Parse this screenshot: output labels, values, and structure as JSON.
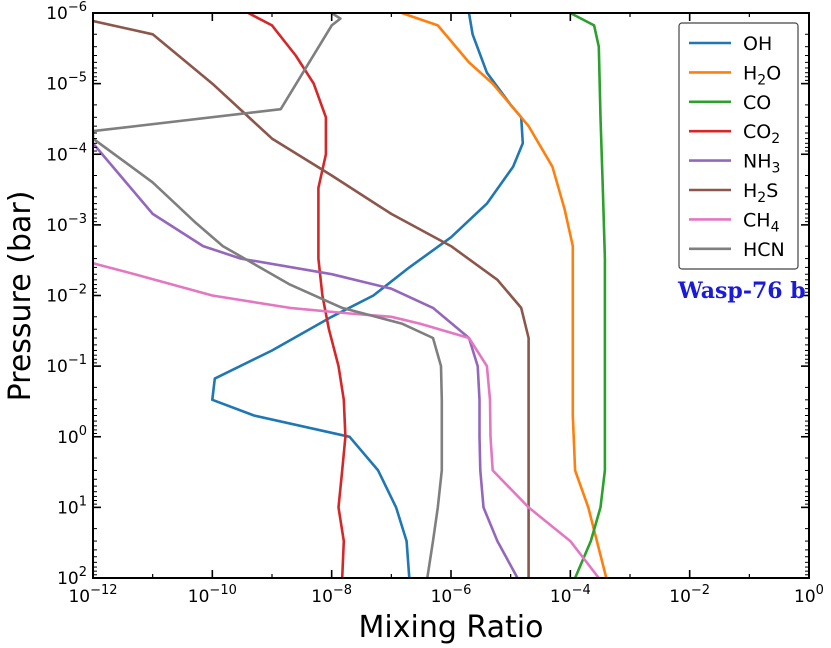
{
  "chart_data": {
    "type": "line",
    "xlabel": "Mixing Ratio",
    "ylabel": "Pressure (bar)",
    "xscale": "log",
    "yscale": "log",
    "y_inverted": true,
    "xlim": [
      1e-12,
      1
    ],
    "ylim": [
      100,
      1e-06
    ],
    "x_tick_labels": [
      {
        "base": "10",
        "exp": "−12"
      },
      {
        "base": "10",
        "exp": "−10"
      },
      {
        "base": "10",
        "exp": "−8"
      },
      {
        "base": "10",
        "exp": "−6"
      },
      {
        "base": "10",
        "exp": "−4"
      },
      {
        "base": "10",
        "exp": "−2"
      },
      {
        "base": "10",
        "exp": "0"
      }
    ],
    "y_tick_labels": [
      {
        "base": "10",
        "exp": "−6"
      },
      {
        "base": "10",
        "exp": "−5"
      },
      {
        "base": "10",
        "exp": "−4"
      },
      {
        "base": "10",
        "exp": "−3"
      },
      {
        "base": "10",
        "exp": "−2"
      },
      {
        "base": "10",
        "exp": "−1"
      },
      {
        "base": "10",
        "exp": "0"
      },
      {
        "base": "10",
        "exp": "1"
      },
      {
        "base": "10",
        "exp": "2"
      }
    ],
    "legend_position": "top-right",
    "annotation": {
      "text": "Wasp-76 b",
      "color": "#1a1adc"
    },
    "series": [
      {
        "name": "OH",
        "label_main": "OH",
        "label_sub": "",
        "color": "#1f77b4",
        "points": [
          [
            2e-07,
            100
          ],
          [
            1.8e-07,
            30
          ],
          [
            1.2e-07,
            10
          ],
          [
            6e-08,
            3
          ],
          [
            2e-08,
            1
          ],
          [
            5e-10,
            0.5
          ],
          [
            1e-10,
            0.3
          ],
          [
            1.1e-10,
            0.15
          ],
          [
            1e-09,
            0.06
          ],
          [
            1e-08,
            0.02
          ],
          [
            5e-08,
            0.01
          ],
          [
            2e-07,
            0.004
          ],
          [
            1e-06,
            0.0015
          ],
          [
            4e-06,
            0.0005
          ],
          [
            1.1e-05,
            0.00015
          ],
          [
            1.6e-05,
            7e-05
          ],
          [
            1.5e-05,
            3e-05
          ],
          [
            1e-05,
            2e-05
          ],
          [
            4e-06,
            7e-06
          ],
          [
            2.3e-06,
            2e-06
          ],
          [
            2e-06,
            1e-06
          ]
        ]
      },
      {
        "name": "H2O",
        "label_main": "H",
        "label_sub": "2",
        "label_tail": "O",
        "color": "#ff7f0e",
        "points": [
          [
            0.0004,
            100
          ],
          [
            0.0002,
            10
          ],
          [
            0.00012,
            3
          ],
          [
            0.00011,
            0.5
          ],
          [
            0.00011,
            0.05
          ],
          [
            0.00011,
            0.01
          ],
          [
            0.00011,
            0.002
          ],
          [
            8e-05,
            0.0006
          ],
          [
            5e-05,
            0.00015
          ],
          [
            2e-05,
            4e-05
          ],
          [
            5e-06,
            1e-05
          ],
          [
            2e-06,
            5e-06
          ],
          [
            6e-07,
            1.5e-06
          ],
          [
            1.5e-07,
            1e-06
          ]
        ]
      },
      {
        "name": "CO",
        "label_main": "CO",
        "label_sub": "",
        "color": "#2ca02c",
        "points": [
          [
            0.00012,
            100
          ],
          [
            0.00022,
            30
          ],
          [
            0.00032,
            10
          ],
          [
            0.00038,
            3
          ],
          [
            0.00038,
            0.3
          ],
          [
            0.00038,
            0.03
          ],
          [
            0.00038,
            0.003
          ],
          [
            0.00035,
            0.0003
          ],
          [
            0.00032,
            3e-05
          ],
          [
            0.0003,
            3e-06
          ],
          [
            0.00025,
            1.5e-06
          ],
          [
            0.0001,
            1e-06
          ]
        ]
      },
      {
        "name": "CO2",
        "label_main": "CO",
        "label_sub": "2",
        "color": "#d62728",
        "points": [
          [
            1.5e-08,
            100
          ],
          [
            1.6e-08,
            30
          ],
          [
            1.3e-08,
            10
          ],
          [
            1.5e-08,
            3
          ],
          [
            1.7e-08,
            1
          ],
          [
            1.6e-08,
            0.3
          ],
          [
            1.3e-08,
            0.1
          ],
          [
            9e-09,
            0.03
          ],
          [
            7e-09,
            0.01
          ],
          [
            6e-09,
            0.003
          ],
          [
            6e-09,
            0.0003
          ],
          [
            8e-09,
            0.0001
          ],
          [
            8e-09,
            3e-05
          ],
          [
            5e-09,
            1e-05
          ],
          [
            2.5e-09,
            4e-06
          ],
          [
            1e-09,
            1.5e-06
          ],
          [
            4e-10,
            1e-06
          ]
        ]
      },
      {
        "name": "NH3",
        "label_main": "NH",
        "label_sub": "3",
        "color": "#9467bd",
        "points": [
          [
            1.3e-05,
            100
          ],
          [
            6e-06,
            30
          ],
          [
            3.5e-06,
            10
          ],
          [
            3.1e-06,
            3
          ],
          [
            3e-06,
            1
          ],
          [
            3e-06,
            0.3
          ],
          [
            2.8e-06,
            0.1
          ],
          [
            2e-06,
            0.04
          ],
          [
            5e-07,
            0.015
          ],
          [
            1e-07,
            0.008
          ],
          [
            1e-08,
            0.005
          ],
          [
            3e-10,
            0.003
          ],
          [
            7e-11,
            0.002
          ],
          [
            1e-11,
            0.0007
          ],
          [
            1e-12,
            7e-05
          ]
        ]
      },
      {
        "name": "H2S",
        "label_main": "H",
        "label_sub": "2",
        "label_tail": "S",
        "color": "#8c564b",
        "points": [
          [
            2e-05,
            100
          ],
          [
            2e-05,
            10
          ],
          [
            2e-05,
            1
          ],
          [
            2e-05,
            0.1
          ],
          [
            2e-05,
            0.04
          ],
          [
            1.5e-05,
            0.015
          ],
          [
            6e-06,
            0.006
          ],
          [
            1e-06,
            0.002
          ],
          [
            1e-07,
            0.0007
          ],
          [
            1e-08,
            0.0002
          ],
          [
            1e-09,
            6e-05
          ],
          [
            1e-10,
            1e-05
          ],
          [
            1e-11,
            2e-06
          ],
          [
            1e-12,
            1.3e-06
          ]
        ]
      },
      {
        "name": "CH4",
        "label_main": "CH",
        "label_sub": "4",
        "color": "#e377c2",
        "points": [
          [
            0.0003,
            100
          ],
          [
            0.0001,
            30
          ],
          [
            2e-05,
            10
          ],
          [
            5e-06,
            3
          ],
          [
            4.6e-06,
            1
          ],
          [
            4.5e-06,
            0.3
          ],
          [
            4e-06,
            0.1
          ],
          [
            2e-06,
            0.04
          ],
          [
            3e-07,
            0.025
          ],
          [
            1e-07,
            0.02
          ],
          [
            2e-08,
            0.018
          ],
          [
            2e-09,
            0.015
          ],
          [
            1e-10,
            0.01
          ],
          [
            5e-12,
            0.005
          ],
          [
            1e-12,
            0.0035
          ]
        ]
      },
      {
        "name": "HCN",
        "label_main": "HCN",
        "label_sub": "",
        "color": "#7f7f7f",
        "points": [
          [
            4e-07,
            100
          ],
          [
            5e-07,
            30
          ],
          [
            6e-07,
            10
          ],
          [
            7e-07,
            3
          ],
          [
            7e-07,
            1
          ],
          [
            7e-07,
            0.3
          ],
          [
            6.8e-07,
            0.1
          ],
          [
            5e-07,
            0.04
          ],
          [
            1.5e-07,
            0.025
          ],
          [
            1.5e-08,
            0.015
          ],
          [
            2e-09,
            0.007
          ],
          [
            1.5e-10,
            0.002
          ],
          [
            5e-11,
            0.0009
          ],
          [
            1e-11,
            0.00025
          ],
          [
            1e-12,
            6e-05
          ],
          [
            1e-12,
            4.7e-05
          ],
          [
            1.4e-09,
            2.3e-05
          ],
          [
            1e-08,
            1.5e-06
          ],
          [
            1.4e-08,
            1.2e-06
          ],
          [
            1e-08,
            1e-06
          ]
        ]
      }
    ]
  }
}
